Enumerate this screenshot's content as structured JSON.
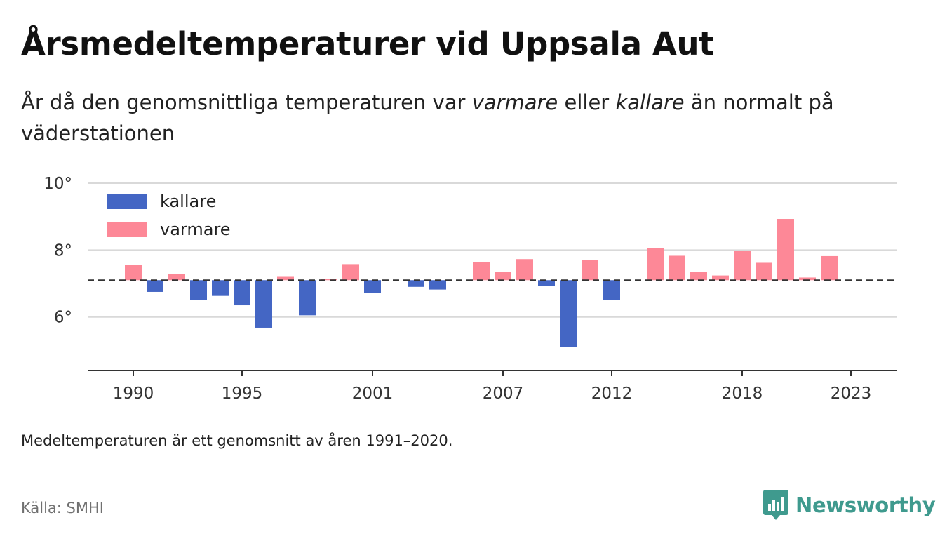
{
  "header": {
    "title": "Årsmedeltemperaturer vid Uppsala Aut",
    "subtitle_parts": [
      "År då den genomsnittliga temperaturen var ",
      "varmare",
      " eller ",
      "kallare",
      " än normalt på väderstationen"
    ]
  },
  "chart_data": {
    "type": "bar",
    "baseline": 7.1,
    "ylim": [
      4.4,
      10.0
    ],
    "yticks": [
      6,
      8,
      10
    ],
    "ytick_suffix": "°",
    "xticks": [
      1990,
      1995,
      2001,
      2007,
      2012,
      2018,
      2023
    ],
    "grid": true,
    "legend_position": "top-left",
    "series": [
      {
        "name": "kallare",
        "color": "#4466c4"
      },
      {
        "name": "varmare",
        "color": "#fd8897"
      }
    ],
    "x": [
      1990,
      1991,
      1992,
      1993,
      1994,
      1995,
      1996,
      1997,
      1998,
      1999,
      2000,
      2001,
      2002,
      2003,
      2004,
      2005,
      2006,
      2007,
      2008,
      2009,
      2010,
      2011,
      2012,
      2013,
      2014,
      2015,
      2016,
      2017,
      2018,
      2019,
      2020,
      2021,
      2022
    ],
    "values": [
      7.55,
      6.75,
      7.28,
      6.5,
      6.63,
      6.35,
      5.68,
      7.2,
      6.05,
      7.14,
      7.58,
      6.72,
      7.1,
      6.9,
      6.82,
      7.1,
      7.64,
      7.34,
      7.73,
      6.92,
      5.1,
      7.71,
      6.5,
      7.1,
      8.05,
      7.83,
      7.35,
      7.24,
      7.98,
      7.62,
      8.93,
      7.18,
      7.82
    ]
  },
  "footer": {
    "note": "Medeltemperaturen är ett genomsnitt av åren 1991–2020.",
    "source": "Källa: SMHI",
    "brand": "Newsworthy",
    "brand_color": "#3f9a8e",
    "brand_icon": "bar-chart-speech-bubble-icon"
  }
}
